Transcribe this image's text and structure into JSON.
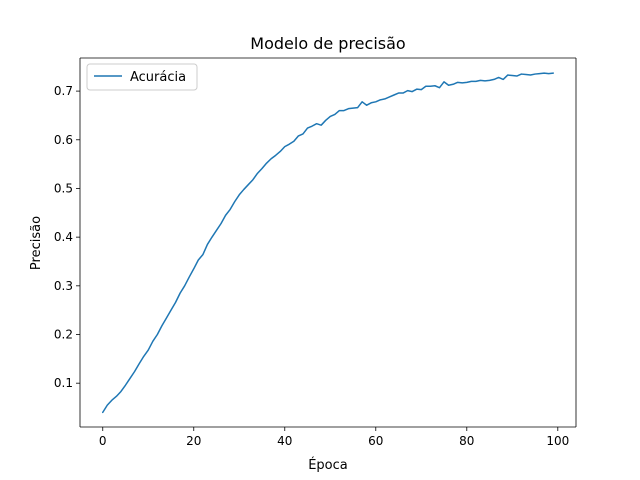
{
  "chart_data": {
    "type": "line",
    "title": "Modelo de precisão",
    "xlabel": "Época",
    "ylabel": "Precisão",
    "xlim": [
      -5,
      104
    ],
    "ylim": [
      0.01,
      0.768
    ],
    "xticks": [
      0,
      20,
      40,
      60,
      80,
      100
    ],
    "yticks": [
      0.1,
      0.2,
      0.3,
      0.4,
      0.5,
      0.6,
      0.7
    ],
    "xtick_labels": [
      "0",
      "20",
      "40",
      "60",
      "80",
      "100"
    ],
    "ytick_labels": [
      "0.1",
      "0.2",
      "0.3",
      "0.4",
      "0.5",
      "0.6",
      "0.7"
    ],
    "grid": false,
    "legend_position": "upper-left",
    "series": [
      {
        "name": "Acurácia",
        "color": "#1f77b4",
        "x": [
          0,
          1,
          2,
          3,
          4,
          5,
          6,
          7,
          8,
          9,
          10,
          11,
          12,
          13,
          14,
          15,
          16,
          17,
          18,
          19,
          20,
          21,
          22,
          23,
          24,
          25,
          26,
          27,
          28,
          29,
          30,
          31,
          32,
          33,
          34,
          35,
          36,
          37,
          38,
          39,
          40,
          41,
          42,
          43,
          44,
          45,
          46,
          47,
          48,
          49,
          50,
          51,
          52,
          53,
          54,
          55,
          56,
          57,
          58,
          59,
          60,
          61,
          62,
          63,
          64,
          65,
          66,
          67,
          68,
          69,
          70,
          71,
          72,
          73,
          74,
          75,
          76,
          77,
          78,
          79,
          80,
          81,
          82,
          83,
          84,
          85,
          86,
          87,
          88,
          89,
          90,
          91,
          92,
          93,
          94,
          95,
          96,
          97,
          98,
          99
        ],
        "values": [
          0.04,
          0.055,
          0.065,
          0.073,
          0.083,
          0.096,
          0.11,
          0.124,
          0.14,
          0.155,
          0.168,
          0.186,
          0.2,
          0.218,
          0.234,
          0.25,
          0.266,
          0.285,
          0.3,
          0.318,
          0.335,
          0.353,
          0.364,
          0.385,
          0.4,
          0.414,
          0.428,
          0.445,
          0.457,
          0.473,
          0.487,
          0.498,
          0.508,
          0.518,
          0.531,
          0.541,
          0.552,
          0.561,
          0.568,
          0.576,
          0.586,
          0.591,
          0.597,
          0.608,
          0.612,
          0.624,
          0.628,
          0.633,
          0.63,
          0.64,
          0.648,
          0.652,
          0.66,
          0.66,
          0.664,
          0.665,
          0.666,
          0.678,
          0.671,
          0.676,
          0.678,
          0.682,
          0.684,
          0.688,
          0.692,
          0.696,
          0.696,
          0.701,
          0.699,
          0.704,
          0.703,
          0.71,
          0.71,
          0.711,
          0.707,
          0.719,
          0.712,
          0.714,
          0.718,
          0.717,
          0.718,
          0.72,
          0.72,
          0.722,
          0.721,
          0.722,
          0.724,
          0.728,
          0.724,
          0.733,
          0.732,
          0.731,
          0.735,
          0.734,
          0.733,
          0.735,
          0.736,
          0.737,
          0.736,
          0.737
        ]
      }
    ]
  }
}
